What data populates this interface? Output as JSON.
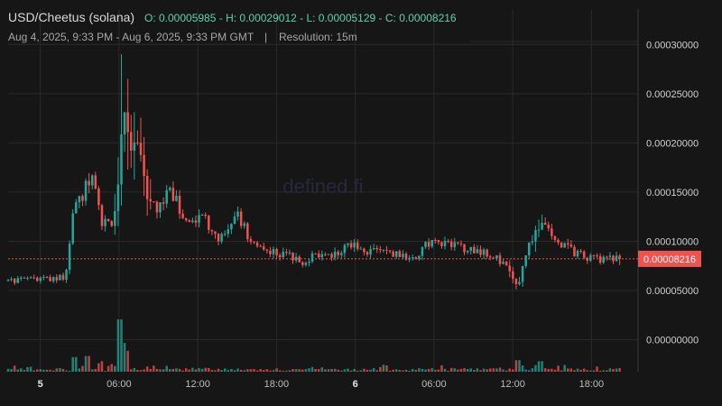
{
  "header": {
    "pair": "USD/Cheetus (solana)",
    "ohlc": "O: 0.00005985 - H: 0.00029012 - L: 0.00005129 - C: 0.00008216",
    "range": "Aug 4, 2025, 9:33 PM - Aug 6, 2025, 9:33 PM GMT",
    "separator": "|",
    "resolution": "Resolution: 15m"
  },
  "watermark": "defined.fi",
  "colors": {
    "up": "#26a69a",
    "down": "#ef5350",
    "grid": "#2a2a2a",
    "background": "#161616",
    "price_line": "#ef5350"
  },
  "current_price": {
    "value": 8.216e-05,
    "label": "0.00008216"
  },
  "chart_data": {
    "type": "candlestick",
    "title": "USD/Cheetus (solana)",
    "xlabel": "",
    "ylabel": "",
    "ylim": [
      -3.25e-05,
      0.000336
    ],
    "y_ticks": [
      {
        "value": 0.0,
        "label": "0.00000000"
      },
      {
        "value": 5e-05,
        "label": "0.00005000"
      },
      {
        "value": 0.0001,
        "label": "0.00010000"
      },
      {
        "value": 0.00015,
        "label": "0.00015000"
      },
      {
        "value": 0.0002,
        "label": "0.00020000"
      },
      {
        "value": 0.00025,
        "label": "0.00025000"
      },
      {
        "value": 0.0003,
        "label": "0.00030000"
      }
    ],
    "x_ticks": [
      {
        "t": 2.45,
        "label": "5",
        "bold": true
      },
      {
        "t": 8.45,
        "label": "06:00",
        "bold": false
      },
      {
        "t": 14.45,
        "label": "12:00",
        "bold": false
      },
      {
        "t": 20.45,
        "label": "18:00",
        "bold": false
      },
      {
        "t": 26.45,
        "label": "6",
        "bold": true
      },
      {
        "t": 32.45,
        "label": "06:00",
        "bold": false
      },
      {
        "t": 38.45,
        "label": "12:00",
        "bold": false
      },
      {
        "t": 44.45,
        "label": "18:00",
        "bold": false
      }
    ],
    "x_range_hours": [
      0,
      48
    ],
    "anchors": [
      [
        0.0,
        5.98e-05
      ],
      [
        1.3,
        6.1e-05
      ],
      [
        2.4,
        6.15e-05
      ],
      [
        3.6,
        6.25e-05
      ],
      [
        4.3,
        6.35e-05
      ],
      [
        4.6,
        8.7e-05
      ],
      [
        5.0,
        0.00013
      ],
      [
        5.6,
        0.000145
      ],
      [
        6.1,
        0.00016
      ],
      [
        6.6,
        0.000165
      ],
      [
        7.0,
        0.000122
      ],
      [
        7.6,
        0.000115
      ],
      [
        8.2,
        0.000128
      ],
      [
        8.6,
        0.00021
      ],
      [
        8.9,
        0.00024
      ],
      [
        9.4,
        0.000195
      ],
      [
        10.0,
        0.00019
      ],
      [
        10.6,
        0.000138
      ],
      [
        11.5,
        0.000135
      ],
      [
        12.4,
        0.000152
      ],
      [
        13.2,
        0.00013
      ],
      [
        14.0,
        0.000124
      ],
      [
        15.1,
        0.000122
      ],
      [
        15.6,
        0.000103
      ],
      [
        16.6,
        0.000103
      ],
      [
        17.5,
        0.000128
      ],
      [
        18.3,
        0.000105
      ],
      [
        19.3,
        9.6e-05
      ],
      [
        20.3,
        8.8e-05
      ],
      [
        21.5,
        8.45e-05
      ],
      [
        22.5,
        7.9e-05
      ],
      [
        23.5,
        8.65e-05
      ],
      [
        24.5,
        8.35e-05
      ],
      [
        25.5,
        9.35e-05
      ],
      [
        26.5,
        9.75e-05
      ],
      [
        27.5,
        8.95e-05
      ],
      [
        28.5,
        8.8e-05
      ],
      [
        29.5,
        8.65e-05
      ],
      [
        30.5,
        8.45e-05
      ],
      [
        31.3,
        8.7e-05
      ],
      [
        31.9,
        9.65e-05
      ],
      [
        32.5,
        9.75e-05
      ],
      [
        33.5,
        9.7e-05
      ],
      [
        34.5,
        9.4e-05
      ],
      [
        35.5,
        9.05e-05
      ],
      [
        36.5,
        8.85e-05
      ],
      [
        37.3,
        8.2e-05
      ],
      [
        38.0,
        7.2e-05
      ],
      [
        38.7,
        5.4e-05
      ],
      [
        39.1,
        6.4e-05
      ],
      [
        39.4,
        8.7e-05
      ],
      [
        39.9,
        0.000101
      ],
      [
        40.5,
        0.000117
      ],
      [
        41.0,
        0.000113
      ],
      [
        41.6,
        9.8e-05
      ],
      [
        42.5,
        9.4e-05
      ],
      [
        43.5,
        8.6e-05
      ],
      [
        44.5,
        8.3e-05
      ],
      [
        45.5,
        8.15e-05
      ],
      [
        46.6,
        8.22e-05
      ]
    ],
    "candles_count": 190,
    "volume_spikes": [
      [
        8.5,
        1.0
      ],
      [
        8.8,
        0.55
      ],
      [
        9.1,
        0.4
      ],
      [
        5.1,
        0.28
      ],
      [
        6.0,
        0.3
      ],
      [
        38.9,
        0.22
      ],
      [
        40.6,
        0.2
      ]
    ]
  }
}
